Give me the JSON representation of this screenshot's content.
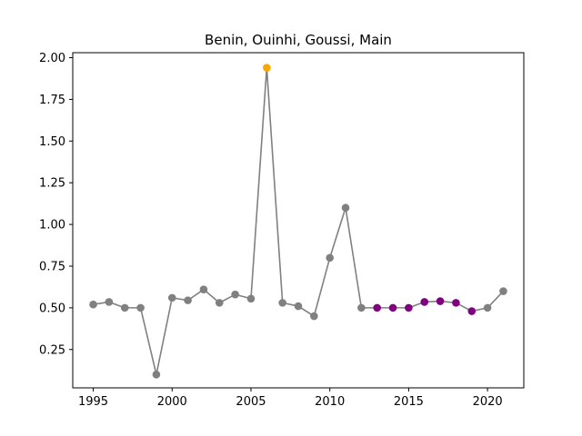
{
  "chart_data": {
    "type": "line",
    "title": "Benin, Ouinhi, Goussi, Main",
    "xlabel": "",
    "ylabel": "",
    "xlim": [
      1993.7,
      2022.3
    ],
    "ylim": [
      0.02,
      2.03
    ],
    "x_ticks": [
      "1995",
      "2000",
      "2005",
      "2010",
      "2015",
      "2020"
    ],
    "y_ticks": [
      "0.25",
      "0.50",
      "0.75",
      "1.00",
      "1.25",
      "1.50",
      "1.75",
      "2.00"
    ],
    "grid": false,
    "line_color": "#808080",
    "series": [
      {
        "x": [
          1995,
          1996,
          1997,
          1998,
          1999,
          2000,
          2001,
          2002,
          2003,
          2004,
          2005,
          2006,
          2007,
          2008,
          2009,
          2010,
          2011,
          2012,
          2013,
          2014,
          2015,
          2016,
          2017,
          2018,
          2019,
          2020,
          2021
        ],
        "y": [
          0.52,
          0.535,
          0.5,
          0.5,
          0.1,
          0.56,
          0.545,
          0.61,
          0.53,
          0.58,
          0.555,
          1.94,
          0.53,
          0.51,
          0.45,
          0.8,
          1.1,
          0.5,
          0.5,
          0.5,
          0.5,
          0.535,
          0.54,
          0.53,
          0.48,
          0.5,
          0.6
        ],
        "point_colors": [
          "#808080",
          "#808080",
          "#808080",
          "#808080",
          "#808080",
          "#808080",
          "#808080",
          "#808080",
          "#808080",
          "#808080",
          "#808080",
          "#ffa500",
          "#808080",
          "#808080",
          "#808080",
          "#808080",
          "#808080",
          "#808080",
          "#800080",
          "#800080",
          "#800080",
          "#800080",
          "#800080",
          "#800080",
          "#800080",
          "#808080",
          "#808080"
        ]
      }
    ]
  }
}
